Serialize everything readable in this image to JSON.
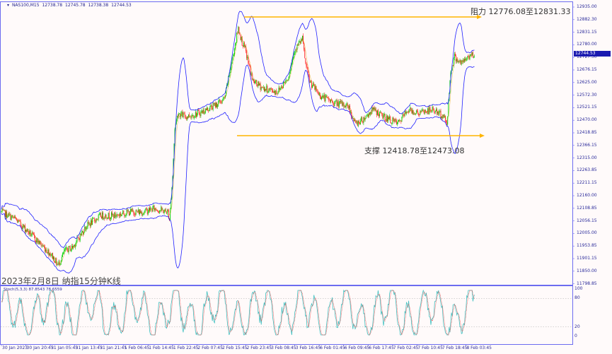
{
  "header": {
    "symbol": "NAS100,M15",
    "open": "12738.78",
    "high": "12745.78",
    "low": "12738.38",
    "close": "12744.53",
    "menu_icon": "triangle-down-icon"
  },
  "title": "2023年2月8日 纳指15分钟K线",
  "annotations": {
    "resistance": {
      "text": "阻力 12776.08至12831.33",
      "price": 12831.33,
      "color": "#ffb400"
    },
    "support": {
      "text": "支撑 12418.78至12473.08",
      "price": 12418.78,
      "color": "#ffb400"
    }
  },
  "current_price": "12744.53",
  "price_axis": [
    "12935.00",
    "12882.30",
    "12831.15",
    "12780.00",
    "12727.30",
    "12676.15",
    "12625.00",
    "12572.30",
    "12521.15",
    "12470.00",
    "12418.85",
    "12366.15",
    "12315.00",
    "12263.85",
    "12211.15",
    "12160.00",
    "12108.85",
    "12056.15",
    "12005.00",
    "11953.85",
    "11901.15",
    "11850.00",
    "11798.85"
  ],
  "time_axis": [
    "30 Jan 2023",
    "30 Jan 20:45",
    "31 Jan 05:45",
    "31 Jan 13:45",
    "31 Jan 21:45",
    "1 Feb 06:45",
    "1 Feb 14:45",
    "1 Feb 22:45",
    "2 Feb 07:45",
    "2 Feb 15:45",
    "2 Feb 23:45",
    "3 Feb 08:45",
    "3 Feb 16:45",
    "6 Feb 01:45",
    "6 Feb 09:45",
    "6 Feb 17:45",
    "7 Feb 02:45",
    "7 Feb 10:45",
    "7 Feb 18:45",
    "8 Feb 03:45"
  ],
  "stoch": {
    "label": "Stoch(5,3,3) 87.8543 78.6559",
    "axis": [
      "100",
      "80",
      "20",
      "0"
    ],
    "main_color": "#40c0c0",
    "signal_color": "#ff3030"
  },
  "chart_data": {
    "type": "candlestick",
    "timeframe": "M15",
    "ylim": [
      11798.85,
      12935.0
    ],
    "up_color": "#00d000",
    "down_color": "#ff2020",
    "bands_color": "#2020ff",
    "price_path": [
      [
        0,
        12094
      ],
      [
        18,
        12065
      ],
      [
        37,
        12007
      ],
      [
        51,
        11963
      ],
      [
        65,
        11920
      ],
      [
        74,
        11876
      ],
      [
        83,
        11934
      ],
      [
        93,
        11949
      ],
      [
        102,
        11992
      ],
      [
        111,
        12036
      ],
      [
        130,
        12079
      ],
      [
        148,
        12079
      ],
      [
        167,
        12094
      ],
      [
        185,
        12094
      ],
      [
        199,
        12108
      ],
      [
        218,
        12094
      ],
      [
        220,
        12065
      ],
      [
        224,
        12239
      ],
      [
        227,
        12442
      ],
      [
        231,
        12500
      ],
      [
        241,
        12485
      ],
      [
        259,
        12500
      ],
      [
        278,
        12529
      ],
      [
        292,
        12558
      ],
      [
        301,
        12703
      ],
      [
        310,
        12848
      ],
      [
        315,
        12790
      ],
      [
        319,
        12761
      ],
      [
        329,
        12630
      ],
      [
        343,
        12601
      ],
      [
        361,
        12587
      ],
      [
        375,
        12645
      ],
      [
        384,
        12761
      ],
      [
        394,
        12804
      ],
      [
        398,
        12703
      ],
      [
        403,
        12630
      ],
      [
        417,
        12572
      ],
      [
        435,
        12543
      ],
      [
        454,
        12529
      ],
      [
        463,
        12456
      ],
      [
        472,
        12471
      ],
      [
        486,
        12514
      ],
      [
        500,
        12485
      ],
      [
        519,
        12456
      ],
      [
        532,
        12514
      ],
      [
        546,
        12500
      ],
      [
        565,
        12514
      ],
      [
        579,
        12485
      ],
      [
        583,
        12456
      ],
      [
        588,
        12674
      ],
      [
        593,
        12732
      ],
      [
        602,
        12703
      ],
      [
        611,
        12732
      ],
      [
        619,
        12744.53
      ]
    ]
  }
}
